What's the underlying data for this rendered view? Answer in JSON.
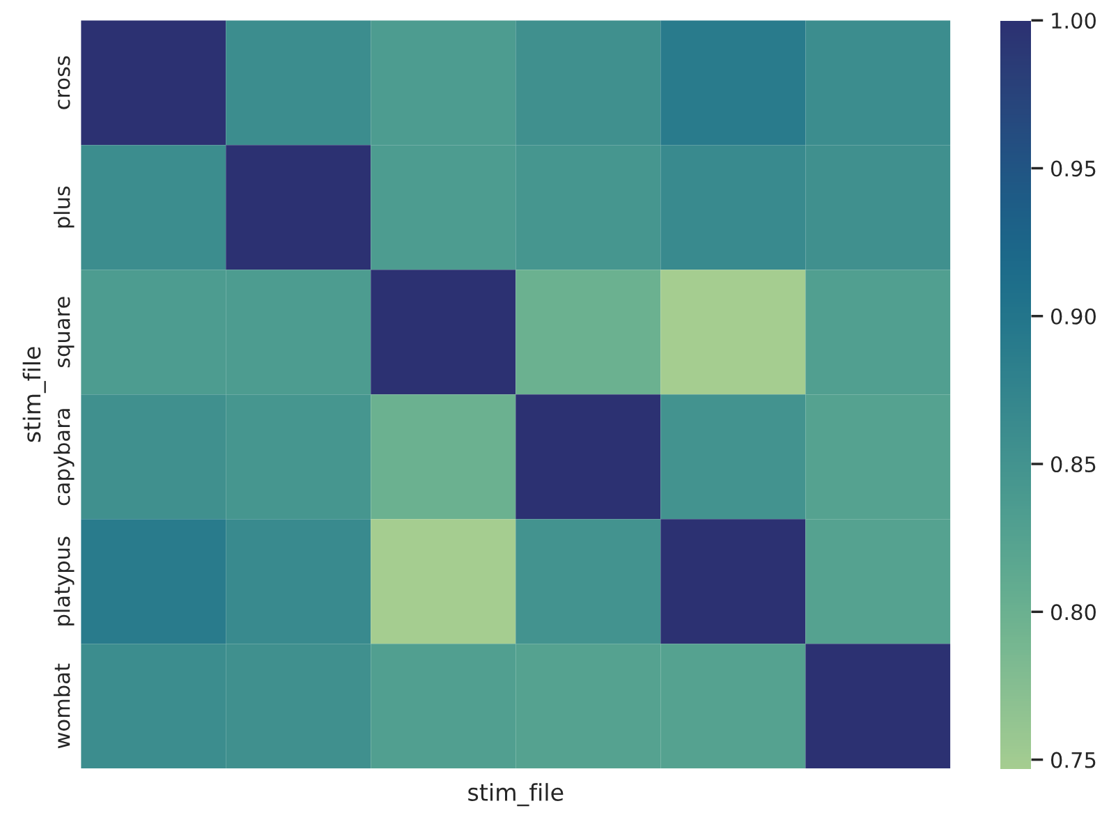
{
  "chart_data": {
    "type": "heatmap",
    "xlabel": "stim_file",
    "ylabel": "stim_file",
    "categories": [
      null,
      null,
      null,
      null,
      null,
      null
    ],
    "y_categories": [
      "cross",
      "plus",
      "square",
      "capybara",
      "platypus",
      "wombat"
    ],
    "cells": [
      [
        1.0,
        0.86,
        0.835,
        0.855,
        0.89,
        0.86
      ],
      [
        0.86,
        1.0,
        0.835,
        0.845,
        0.865,
        0.855
      ],
      [
        0.835,
        0.835,
        1.0,
        0.8,
        0.747,
        0.83
      ],
      [
        0.855,
        0.845,
        0.8,
        1.0,
        0.85,
        0.825
      ],
      [
        0.89,
        0.865,
        0.747,
        0.85,
        1.0,
        0.825
      ],
      [
        0.86,
        0.855,
        0.83,
        0.825,
        0.825,
        1.0
      ]
    ],
    "clim": [
      0.747,
      1.0
    ],
    "cticks": [
      {
        "value": 0.75,
        "label": "0.75"
      },
      {
        "value": 0.8,
        "label": "0.80"
      },
      {
        "value": 0.85,
        "label": "0.85"
      },
      {
        "value": 0.9,
        "label": "0.90"
      },
      {
        "value": 0.95,
        "label": "0.95"
      },
      {
        "value": 1.0,
        "label": "1.00"
      }
    ],
    "tick_labels": "y"
  }
}
